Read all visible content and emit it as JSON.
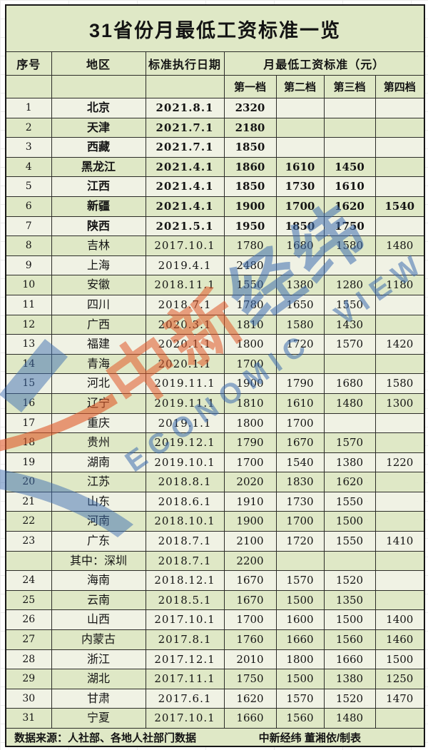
{
  "chart_data": {
    "type": "table",
    "title": "31省份月最低工资标准一览",
    "headers": {
      "no": "序号",
      "region": "地区",
      "date": "标准执行日期",
      "wage_group": "月最低工资标准（元）",
      "tiers": [
        "第一档",
        "第二档",
        "第三档",
        "第四档"
      ]
    },
    "rows": [
      {
        "no": "1",
        "region": "北京",
        "date": "2021.8.1",
        "t1": "2320",
        "t2": "",
        "t3": "",
        "t4": "",
        "bold": true
      },
      {
        "no": "2",
        "region": "天津",
        "date": "2021.7.1",
        "t1": "2180",
        "t2": "",
        "t3": "",
        "t4": "",
        "bold": true
      },
      {
        "no": "3",
        "region": "西藏",
        "date": "2021.7.1",
        "t1": "1850",
        "t2": "",
        "t3": "",
        "t4": "",
        "bold": true
      },
      {
        "no": "4",
        "region": "黑龙江",
        "date": "2021.4.1",
        "t1": "1860",
        "t2": "1610",
        "t3": "1450",
        "t4": "",
        "bold": true
      },
      {
        "no": "5",
        "region": "江西",
        "date": "2021.4.1",
        "t1": "1850",
        "t2": "1730",
        "t3": "1610",
        "t4": "",
        "bold": true
      },
      {
        "no": "6",
        "region": "新疆",
        "date": "2021.4.1",
        "t1": "1900",
        "t2": "1700",
        "t3": "1620",
        "t4": "1540",
        "bold": true
      },
      {
        "no": "7",
        "region": "陕西",
        "date": "2021.5.1",
        "t1": "1950",
        "t2": "1850",
        "t3": "1750",
        "t4": "",
        "bold": true
      },
      {
        "no": "8",
        "region": "吉林",
        "date": "2017.10.1",
        "t1": "1780",
        "t2": "1680",
        "t3": "1580",
        "t4": "1480"
      },
      {
        "no": "9",
        "region": "上海",
        "date": "2019.4.1",
        "t1": "2480",
        "t2": "",
        "t3": "",
        "t4": ""
      },
      {
        "no": "10",
        "region": "安徽",
        "date": "2018.11.1",
        "t1": "1550",
        "t2": "1380",
        "t3": "1280",
        "t4": "1180"
      },
      {
        "no": "11",
        "region": "四川",
        "date": "2018.7.1",
        "t1": "1780",
        "t2": "1650",
        "t3": "1550",
        "t4": ""
      },
      {
        "no": "12",
        "region": "广西",
        "date": "2020.3.1",
        "t1": "1810",
        "t2": "1580",
        "t3": "1430",
        "t4": ""
      },
      {
        "no": "13",
        "region": "福建",
        "date": "2020.1.1",
        "t1": "1800",
        "t2": "1720",
        "t3": "1570",
        "t4": "1420"
      },
      {
        "no": "14",
        "region": "青海",
        "date": "2020.1.1",
        "t1": "1700",
        "t2": "",
        "t3": "",
        "t4": ""
      },
      {
        "no": "15",
        "region": "河北",
        "date": "2019.11.1",
        "t1": "1900",
        "t2": "1790",
        "t3": "1680",
        "t4": "1580"
      },
      {
        "no": "16",
        "region": "辽宁",
        "date": "2019.11.1",
        "t1": "1810",
        "t2": "1610",
        "t3": "1480",
        "t4": "1300"
      },
      {
        "no": "17",
        "region": "重庆",
        "date": "2019.1.1",
        "t1": "1800",
        "t2": "1700",
        "t3": "",
        "t4": ""
      },
      {
        "no": "18",
        "region": "贵州",
        "date": "2019.12.1",
        "t1": "1790",
        "t2": "1670",
        "t3": "1570",
        "t4": ""
      },
      {
        "no": "19",
        "region": "湖南",
        "date": "2019.10.1",
        "t1": "1700",
        "t2": "1540",
        "t3": "1380",
        "t4": "1220"
      },
      {
        "no": "20",
        "region": "江苏",
        "date": "2018.8.1",
        "t1": "2020",
        "t2": "1830",
        "t3": "1620",
        "t4": ""
      },
      {
        "no": "21",
        "region": "山东",
        "date": "2018.6.1",
        "t1": "1910",
        "t2": "1730",
        "t3": "1550",
        "t4": ""
      },
      {
        "no": "22",
        "region": "河南",
        "date": "2018.10.1",
        "t1": "1900",
        "t2": "1700",
        "t3": "1500",
        "t4": ""
      },
      {
        "no": "23",
        "region": "广东",
        "date": "2018.7.1",
        "t1": "2100",
        "t2": "1720",
        "t3": "1550",
        "t4": "1410"
      },
      {
        "no": "",
        "region": "其中：深圳",
        "date": "2018.7.1",
        "t1": "2200",
        "t2": "",
        "t3": "",
        "t4": ""
      },
      {
        "no": "24",
        "region": "海南",
        "date": "2018.12.1",
        "t1": "1670",
        "t2": "1570",
        "t3": "1520",
        "t4": ""
      },
      {
        "no": "25",
        "region": "云南",
        "date": "2018.5.1",
        "t1": "1670",
        "t2": "1500",
        "t3": "1350",
        "t4": ""
      },
      {
        "no": "26",
        "region": "山西",
        "date": "2017.10.1",
        "t1": "1700",
        "t2": "1600",
        "t3": "1500",
        "t4": "1400"
      },
      {
        "no": "27",
        "region": "内蒙古",
        "date": "2017.8.1",
        "t1": "1760",
        "t2": "1660",
        "t3": "1560",
        "t4": "1460"
      },
      {
        "no": "28",
        "region": "浙江",
        "date": "2017.12.1",
        "t1": "2010",
        "t2": "1800",
        "t3": "1660",
        "t4": "1500"
      },
      {
        "no": "29",
        "region": "湖北",
        "date": "2017.11.1",
        "t1": "1750",
        "t2": "1500",
        "t3": "1380",
        "t4": "1250"
      },
      {
        "no": "30",
        "region": "甘肃",
        "date": "2017.6.1",
        "t1": "1620",
        "t2": "1570",
        "t3": "1520",
        "t4": "1470"
      },
      {
        "no": "31",
        "region": "宁夏",
        "date": "2017.10.1",
        "t1": "1660",
        "t2": "1560",
        "t3": "1480",
        "t4": ""
      }
    ]
  },
  "footer": {
    "source": "数据来源：人社部、各地人社部门数据",
    "credit": "中新经纬 董湘依/制表"
  },
  "watermark": {
    "cn_part1": "中新",
    "cn_part2": "经纬",
    "en": "ECONOMIC VIEW"
  },
  "colors": {
    "row_green": "#dfe8c6",
    "row_light": "#f0f2e4",
    "border": "#161616",
    "watermark_orange": "#e05828",
    "watermark_blue": "#3e6eaf"
  }
}
